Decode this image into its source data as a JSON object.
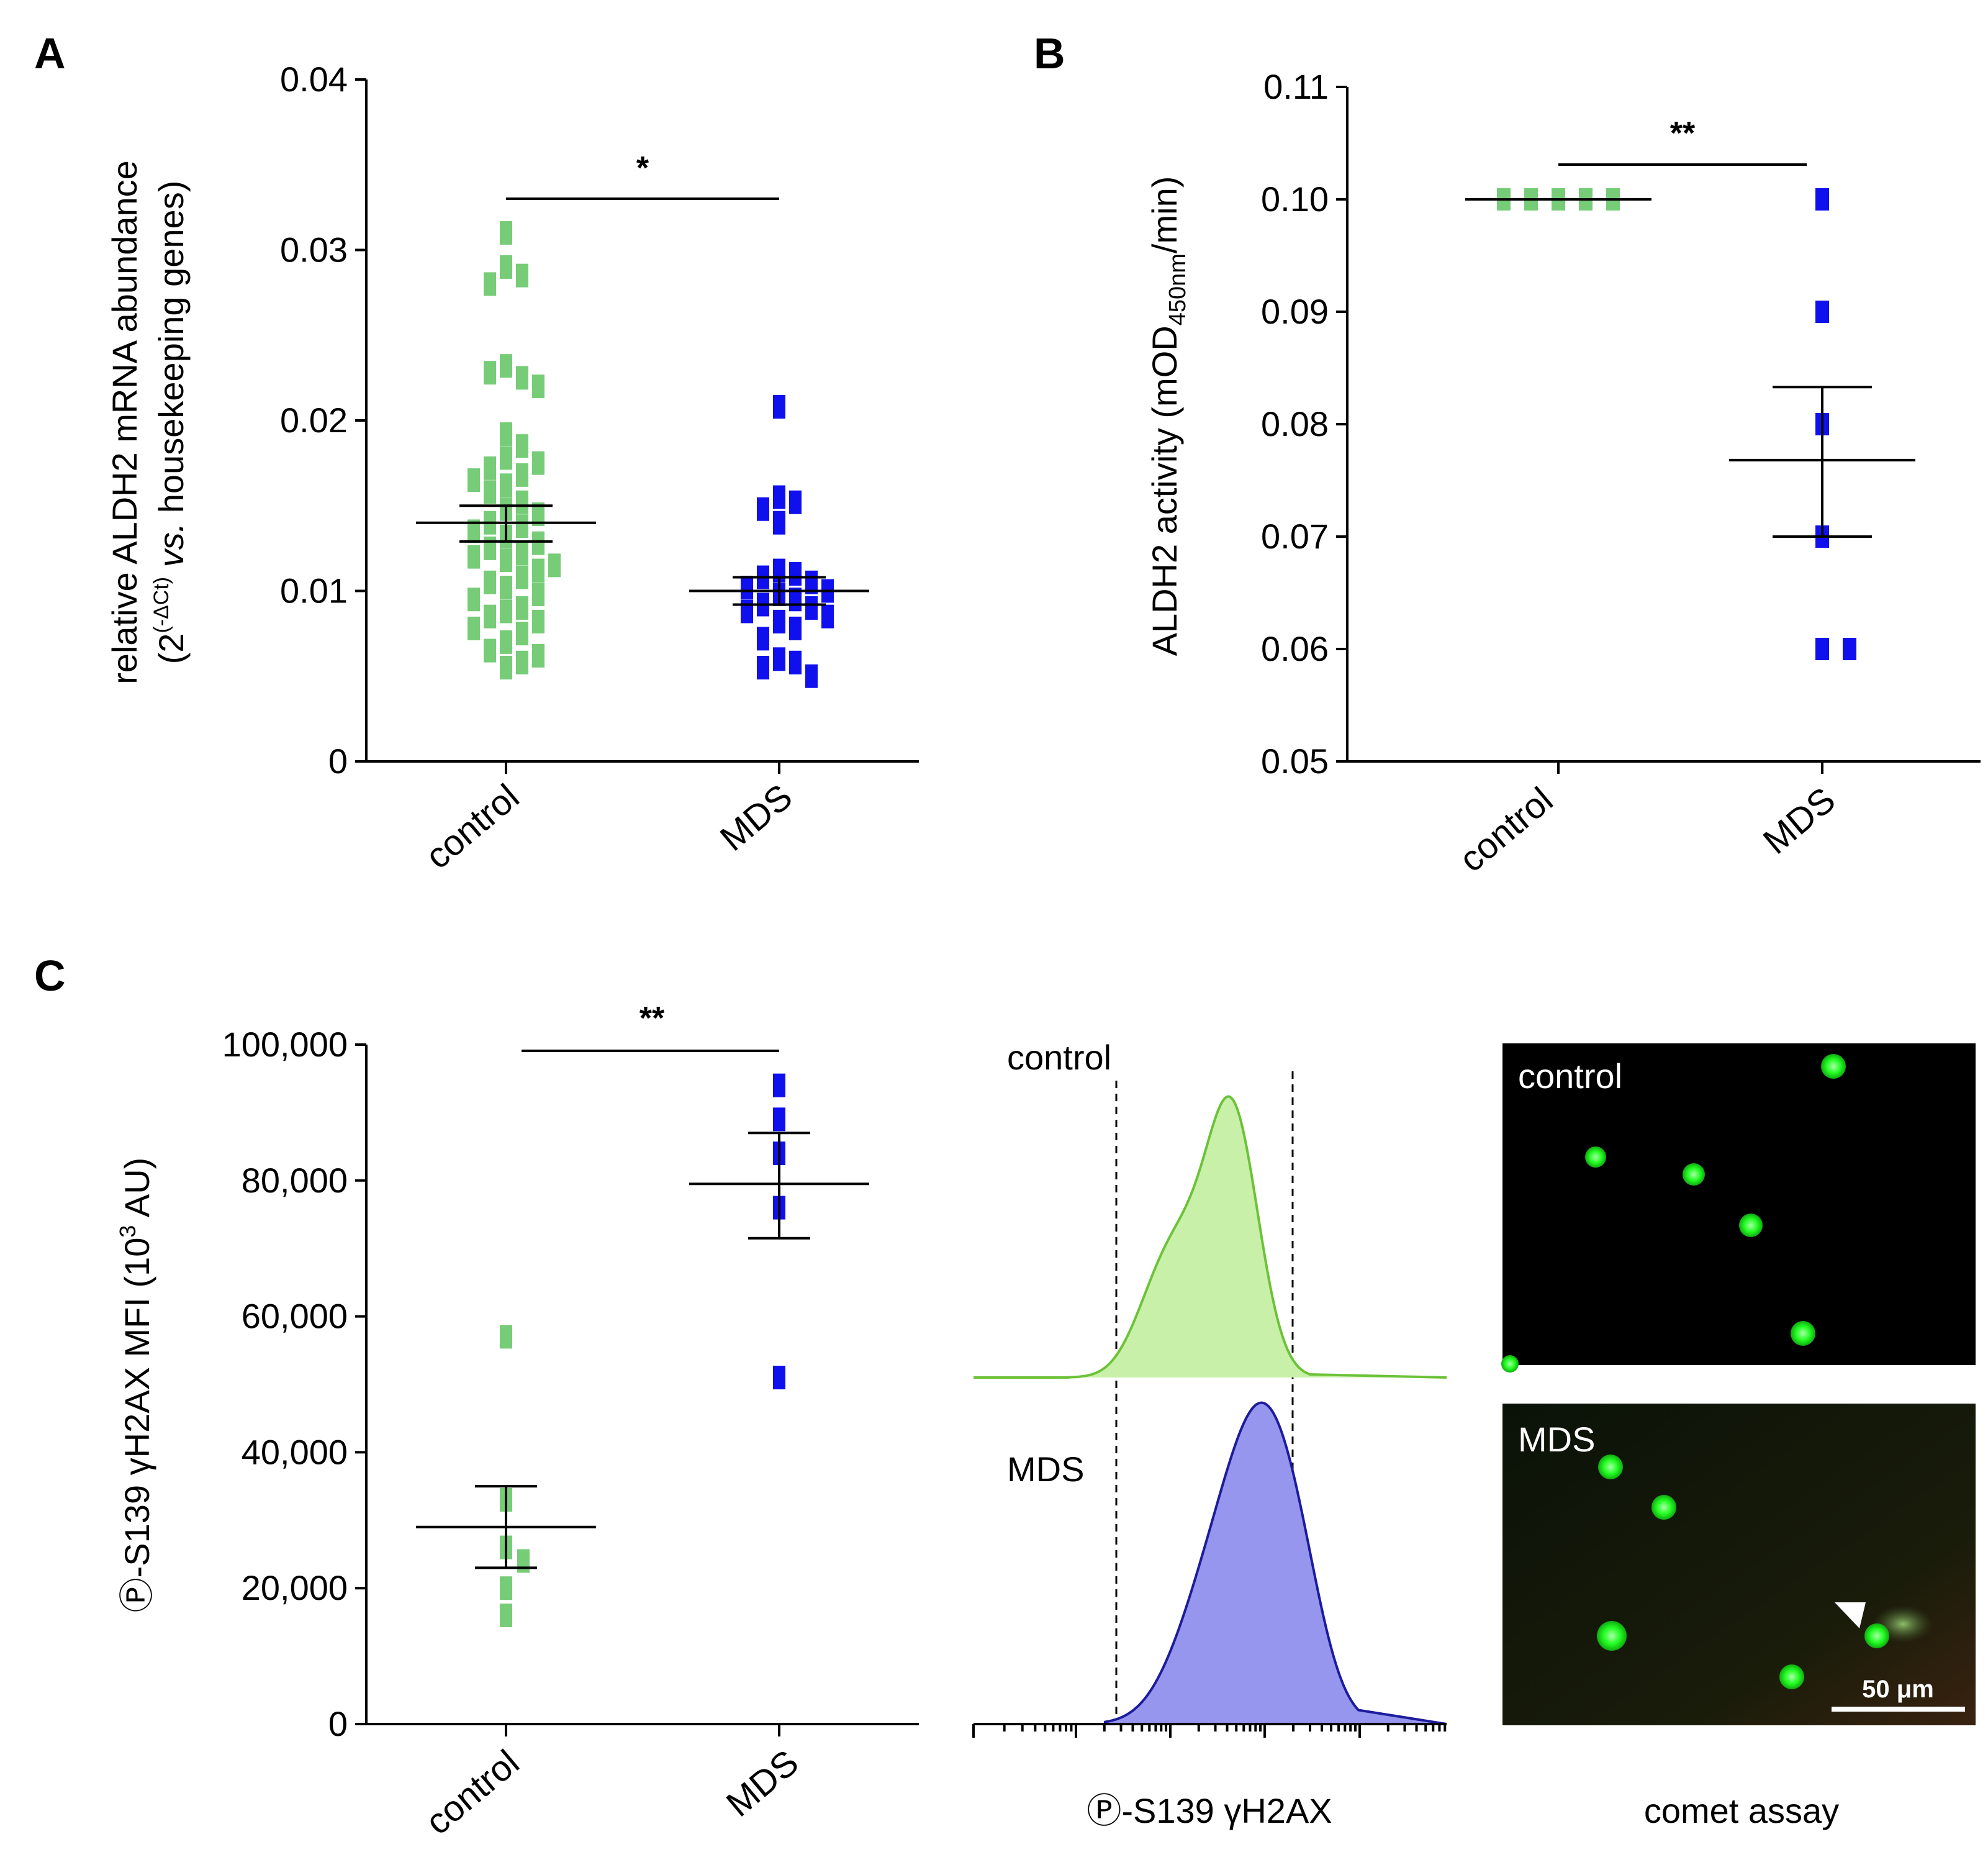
{
  "figure": {
    "panels": [
      "A",
      "B",
      "C"
    ],
    "subtitles": {
      "histogram_xlabel": "Ⓟ-S139 γH2AX",
      "comet_caption": "comet assay",
      "histogram_labels": [
        "control",
        "MDS"
      ],
      "image_labels": [
        "control",
        "MDS"
      ],
      "scale_bar": "50 μm"
    },
    "colors": {
      "control": "#77cc77",
      "mds": "#1010ee",
      "hist_control_fill": "#c8f0a8",
      "hist_control_line": "#6cc238",
      "hist_mds_fill": "#9696ee",
      "hist_mds_line": "#1c1c9c",
      "nucleus": "#22ff22",
      "comet_tail": "#7aa85a"
    }
  },
  "chart_data": [
    {
      "panel": "A",
      "type": "scatter",
      "ylabel_line1": "relative ALDH2 mRNA abundance",
      "ylabel_line2_prefix": "(2",
      "ylabel_line2_sup": "(-ΔCt)",
      "ylabel_line2_italic": " vs.",
      "ylabel_line2_rest": " housekeeping genes)",
      "ylim": [
        0,
        0.04
      ],
      "yticks": [
        "0",
        "0.01",
        "0.02",
        "0.03",
        "0.04"
      ],
      "ytick_values": [
        0,
        0.01,
        0.02,
        0.03,
        0.04
      ],
      "categories": [
        "control",
        "MDS"
      ],
      "significance": "*",
      "series": [
        {
          "name": "control",
          "mean": 0.014,
          "sem_low": 0.0129,
          "sem_high": 0.015,
          "values": [
            0.031,
            0.029,
            0.0285,
            0.028,
            0.0232,
            0.0225,
            0.0228,
            0.022,
            0.0192,
            0.0185,
            0.0178,
            0.0172,
            0.0175,
            0.0168,
            0.0162,
            0.0165,
            0.0158,
            0.0152,
            0.0148,
            0.0145,
            0.014,
            0.0138,
            0.0135,
            0.0132,
            0.0128,
            0.0125,
            0.0122,
            0.012,
            0.0118,
            0.0115,
            0.0112,
            0.0108,
            0.0105,
            0.0102,
            0.0098,
            0.0095,
            0.009,
            0.0088,
            0.0085,
            0.0082,
            0.0078,
            0.0075,
            0.007,
            0.0065,
            0.0062,
            0.0058,
            0.0055
          ]
        },
        {
          "name": "MDS",
          "mean": 0.01,
          "sem_low": 0.0092,
          "sem_high": 0.0108,
          "values": [
            0.0208,
            0.0155,
            0.0152,
            0.0148,
            0.014,
            0.0112,
            0.011,
            0.0108,
            0.0105,
            0.0102,
            0.01,
            0.0098,
            0.0095,
            0.0092,
            0.009,
            0.0088,
            0.0085,
            0.0082,
            0.0078,
            0.0072,
            0.006,
            0.0058,
            0.0055,
            0.005
          ]
        }
      ]
    },
    {
      "panel": "B",
      "type": "scatter",
      "ylabel_main": "ALDH2 activity (mOD",
      "ylabel_sub": "450nm",
      "ylabel_end": "/min)",
      "ylim": [
        0.05,
        0.11
      ],
      "yticks": [
        "0.05",
        "0.06",
        "0.07",
        "0.08",
        "0.09",
        "0.10",
        "0.11"
      ],
      "ytick_values": [
        0.05,
        0.06,
        0.07,
        0.08,
        0.09,
        0.1,
        0.11
      ],
      "categories": [
        "control",
        "MDS"
      ],
      "significance": "**",
      "series": [
        {
          "name": "control",
          "mean": 0.1,
          "sem_low": 0.1,
          "sem_high": 0.1,
          "values": [
            0.1,
            0.1,
            0.1,
            0.1,
            0.1
          ]
        },
        {
          "name": "MDS",
          "mean": 0.0768,
          "sem_low": 0.07,
          "sem_high": 0.0833,
          "values": [
            0.1,
            0.09,
            0.08,
            0.07,
            0.06,
            0.06
          ]
        }
      ]
    },
    {
      "panel": "C",
      "type": "scatter",
      "ylabel_main": "Ⓟ-S139 γH2AX MFI (10",
      "ylabel_sup": "3",
      "ylabel_end": " AU)",
      "ylim": [
        0,
        100000
      ],
      "yticks": [
        "0",
        "20,000",
        "40,000",
        "60,000",
        "80,000",
        "100,000"
      ],
      "ytick_values": [
        0,
        20000,
        40000,
        60000,
        80000,
        100000
      ],
      "categories": [
        "control",
        "MDS"
      ],
      "significance": "**",
      "series": [
        {
          "name": "control",
          "mean": 29000,
          "sem_low": 23000,
          "sem_high": 35000,
          "values": [
            57000,
            33000,
            26000,
            24000,
            20000,
            16000
          ]
        },
        {
          "name": "MDS",
          "mean": 79500,
          "sem_low": 71500,
          "sem_high": 87000,
          "values": [
            94000,
            89000,
            84000,
            76000,
            51000
          ]
        }
      ]
    }
  ]
}
